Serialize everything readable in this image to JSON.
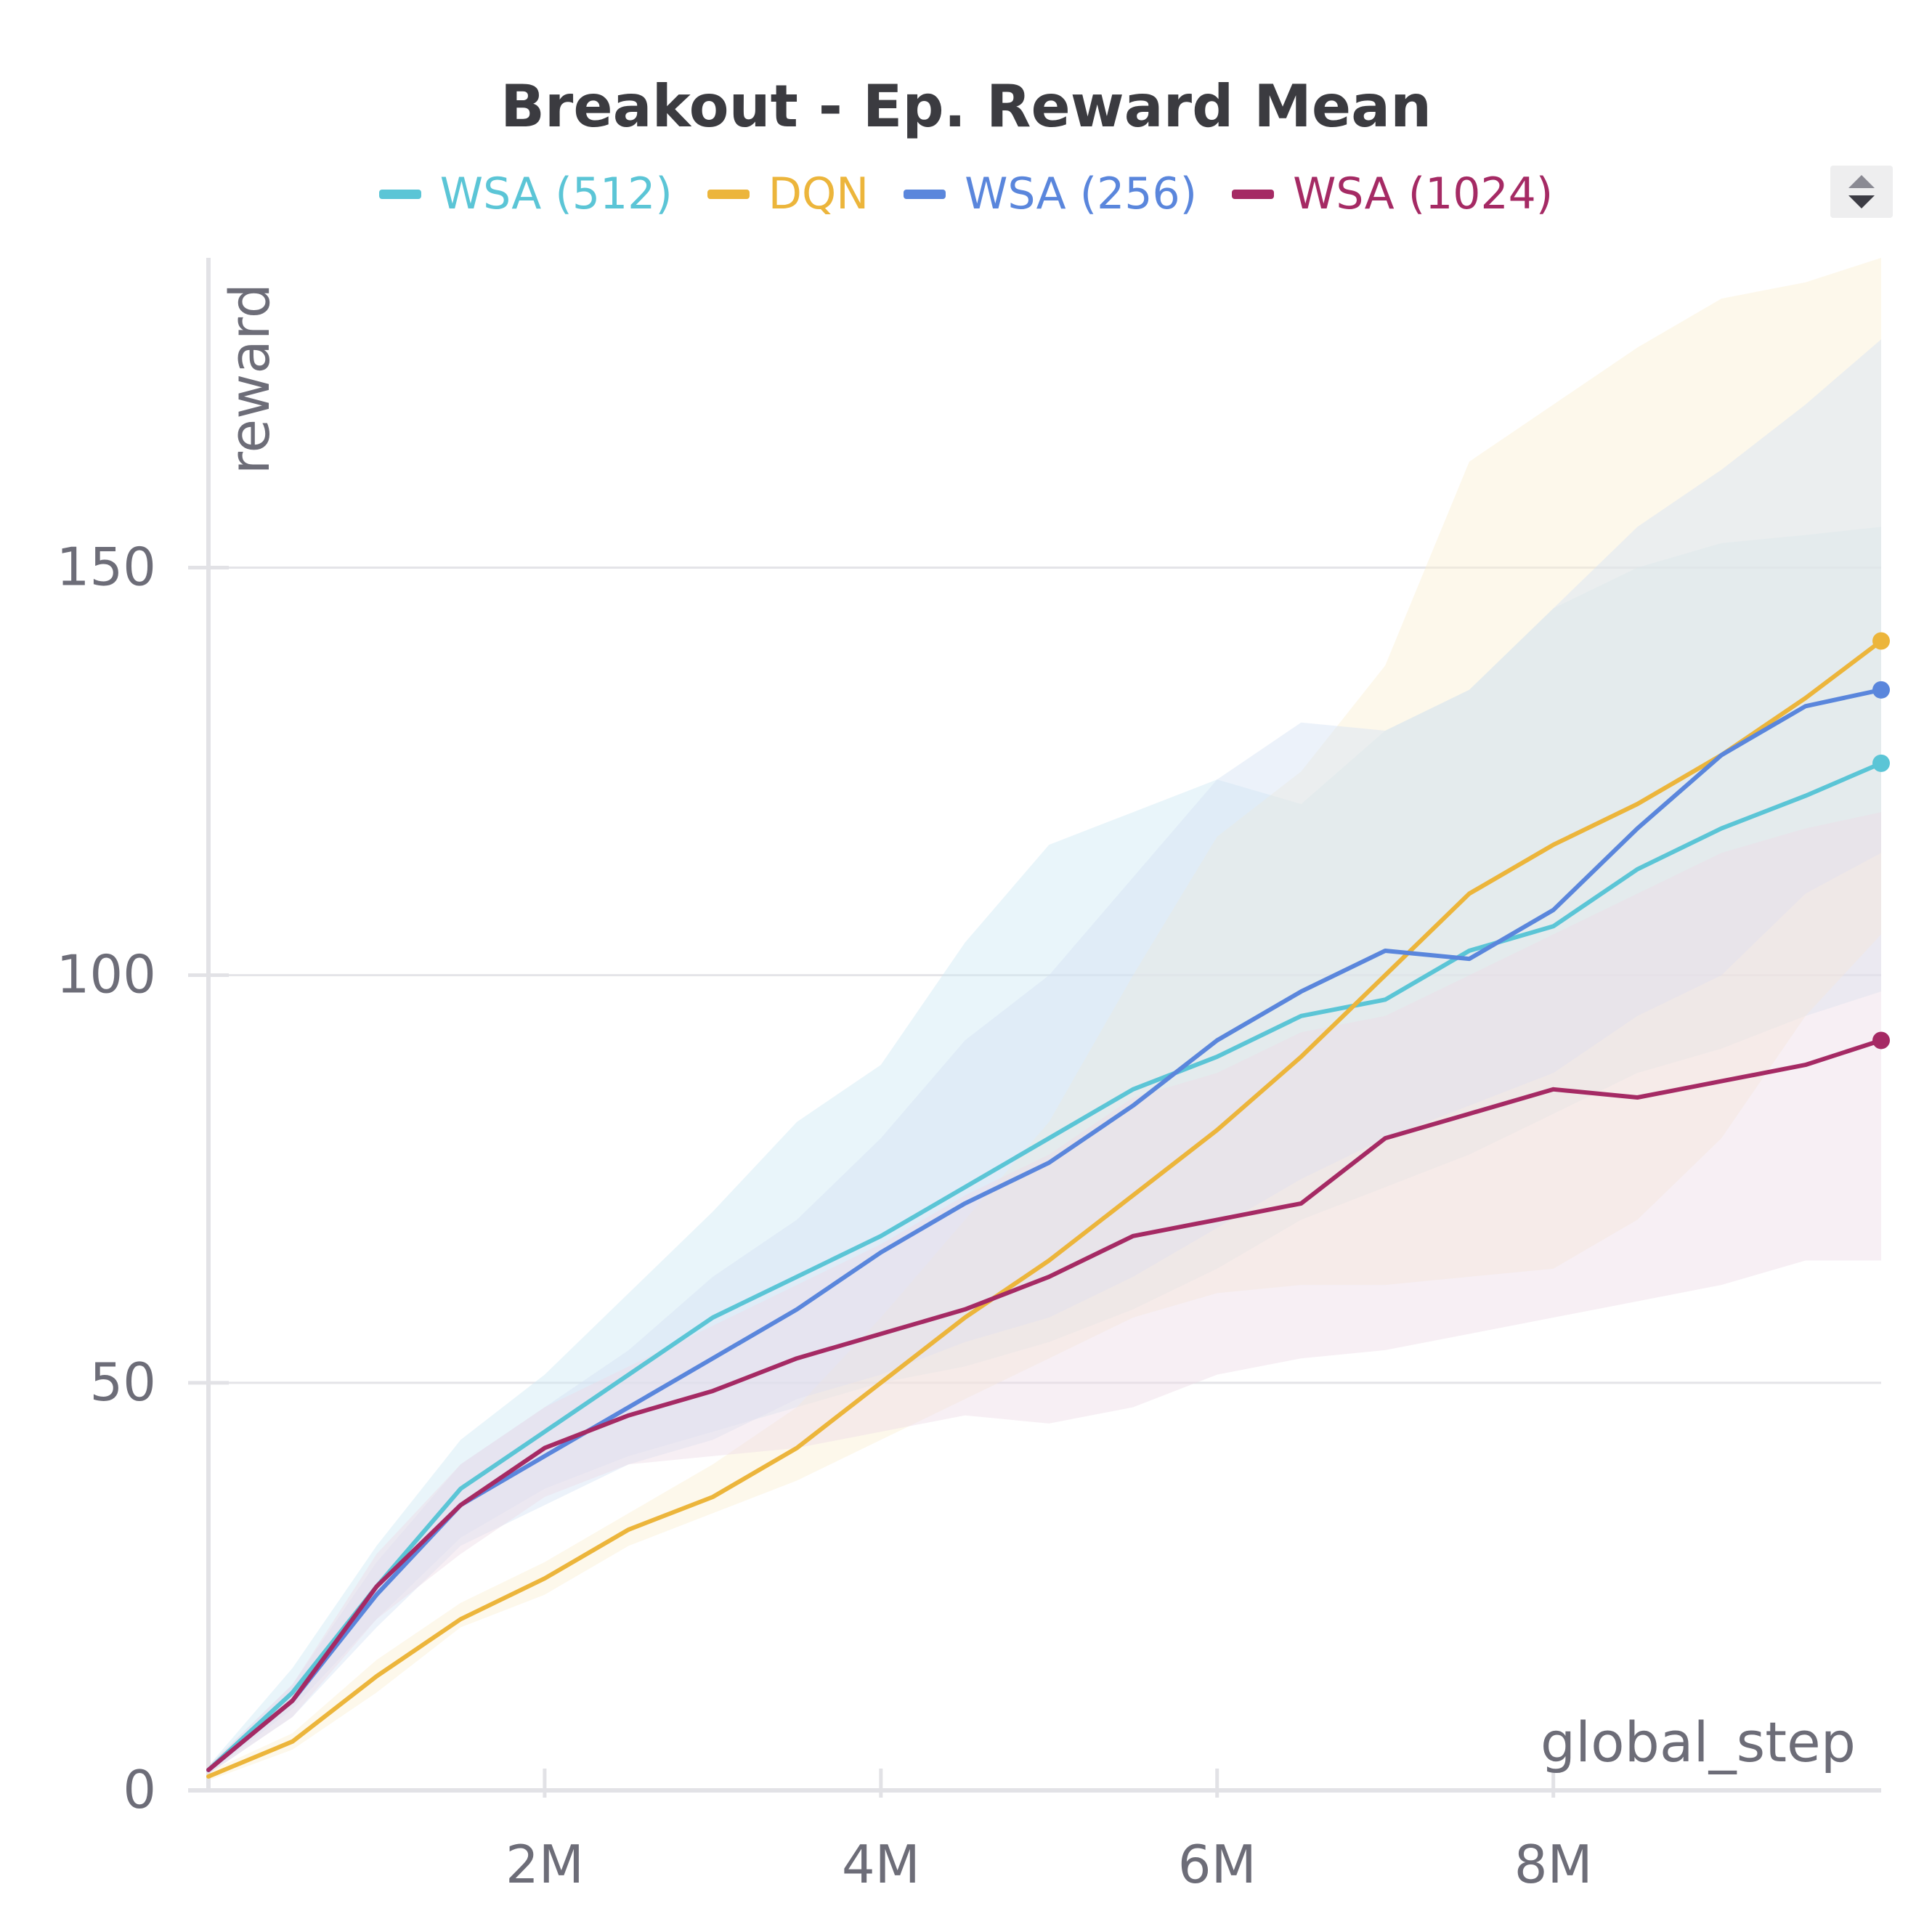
{
  "chart_data": {
    "type": "line",
    "title": "Breakout - Ep. Reward Mean",
    "xlabel": "global_step",
    "ylabel": "reward",
    "xlim": [
      0,
      9950000
    ],
    "ylim": [
      0,
      188
    ],
    "x_ticks": [
      2000000,
      4000000,
      6000000,
      8000000
    ],
    "x_tick_labels": [
      "2M",
      "4M",
      "6M",
      "8M"
    ],
    "y_ticks": [
      0,
      50,
      100,
      150
    ],
    "y_tick_labels": [
      "0",
      "50",
      "100",
      "150"
    ],
    "grid": true,
    "legend_position": "top",
    "x": [
      0,
      500000,
      1000000,
      1500000,
      2000000,
      2500000,
      3000000,
      3500000,
      4000000,
      4500000,
      5000000,
      5500000,
      6000000,
      6500000,
      7000000,
      7500000,
      8000000,
      8500000,
      9000000,
      9500000,
      9950000
    ],
    "series": [
      {
        "name": "WSA (512)",
        "color": "#5bc5d6",
        "band_color": "#cfe9f3",
        "values": [
          2.5,
          12,
          25,
          37,
          44,
          51,
          58,
          63,
          68,
          74,
          80,
          86,
          90,
          95,
          97,
          103,
          106,
          113,
          118,
          122,
          126
        ],
        "lower": [
          2,
          10,
          21,
          31,
          37,
          41,
          44,
          47,
          50,
          52,
          55,
          59,
          64,
          70,
          74,
          78,
          83,
          88,
          91,
          95,
          98
        ],
        "upper": [
          3,
          15,
          30,
          43,
          51,
          61,
          71,
          82,
          89,
          104,
          116,
          120,
          124,
          121,
          130,
          135,
          145,
          150,
          153,
          154,
          155
        ]
      },
      {
        "name": "DQN",
        "color": "#ecb53b",
        "band_color": "#fbf0d2",
        "values": [
          1.7,
          6,
          14,
          21,
          26,
          32,
          36,
          42,
          50,
          58,
          65,
          73,
          81,
          90,
          100,
          110,
          116,
          121,
          127,
          134,
          141
        ],
        "lower": [
          1.2,
          5,
          12,
          20,
          24,
          30,
          34,
          38,
          43,
          48,
          53,
          58,
          61,
          62,
          62,
          63,
          64,
          70,
          80,
          95,
          105
        ],
        "upper": [
          2.3,
          7,
          16,
          23,
          28,
          34,
          40,
          47,
          58,
          70,
          82,
          100,
          117,
          125,
          138,
          163,
          170,
          177,
          183,
          185,
          188
        ]
      },
      {
        "name": "WSA (256)",
        "color": "#5a86dc",
        "band_color": "#d4e2f4",
        "values": [
          2.5,
          11,
          24,
          35,
          41,
          47,
          53,
          59,
          66,
          72,
          77,
          84,
          92,
          98,
          103,
          102,
          108,
          118,
          127,
          133,
          135
        ],
        "lower": [
          2,
          9,
          20,
          30,
          35,
          40,
          43,
          48,
          51,
          55,
          58,
          63,
          69,
          75,
          80,
          84,
          88,
          95,
          100,
          110,
          115
        ],
        "upper": [
          3,
          13,
          28,
          40,
          47,
          54,
          63,
          70,
          80,
          92,
          100,
          112,
          124,
          131,
          130,
          135,
          145,
          155,
          162,
          170,
          178
        ]
      },
      {
        "name": "WSA (1024)",
        "color": "#a52a64",
        "band_color": "#eddbe6",
        "values": [
          2.5,
          11,
          25,
          35,
          42,
          46,
          49,
          53,
          56,
          59,
          63,
          68,
          70,
          72,
          80,
          83,
          86,
          85,
          87,
          89,
          92
        ],
        "lower": [
          2,
          9,
          21,
          29,
          36,
          40,
          41,
          42,
          44,
          46,
          45,
          47,
          51,
          53,
          54,
          56,
          58,
          60,
          62,
          65,
          65
        ],
        "upper": [
          3,
          13,
          29,
          40,
          47,
          52,
          57,
          62,
          67,
          73,
          78,
          85,
          88,
          93,
          95,
          100,
          105,
          110,
          115,
          118,
          120
        ]
      }
    ]
  }
}
